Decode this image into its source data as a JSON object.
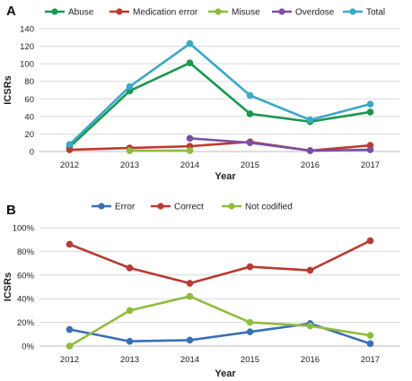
{
  "chart_data": [
    {
      "type": "line",
      "panel_label": "A",
      "xlabel": "Year",
      "ylabel": "ICSRs",
      "categories": [
        "2012",
        "2013",
        "2014",
        "2015",
        "2016",
        "2017"
      ],
      "ylim": [
        0,
        140
      ],
      "yticks": [
        0,
        20,
        40,
        60,
        80,
        100,
        120,
        140
      ],
      "ytick_labels": [
        "0",
        "20",
        "40",
        "60",
        "80",
        "100",
        "120",
        "140"
      ],
      "grid": true,
      "legend_position": "top",
      "series": [
        {
          "name": "Abuse",
          "color": "#1a9850",
          "values": [
            5,
            69,
            101,
            43,
            34,
            45
          ]
        },
        {
          "name": "Medication error",
          "color": "#c0392b",
          "values": [
            2,
            4,
            6,
            11,
            1,
            7
          ]
        },
        {
          "name": "Misuse",
          "color": "#8fbc3f",
          "values": [
            null,
            1,
            1,
            null,
            null,
            null
          ]
        },
        {
          "name": "Overdose",
          "color": "#7b4fa0",
          "values": [
            null,
            null,
            15,
            10,
            1,
            2
          ]
        },
        {
          "name": "Total",
          "color": "#3ca8c8",
          "values": [
            8,
            74,
            123,
            64,
            36,
            54
          ]
        }
      ]
    },
    {
      "type": "line",
      "panel_label": "B",
      "xlabel": "Year",
      "ylabel": "ICSRs",
      "categories": [
        "2012",
        "2013",
        "2014",
        "2015",
        "2016",
        "2017"
      ],
      "ylim": [
        0,
        100
      ],
      "yticks": [
        0,
        20,
        40,
        60,
        80,
        100
      ],
      "ytick_labels": [
        "0%",
        "20%",
        "40%",
        "60%",
        "80%",
        "100%"
      ],
      "grid": true,
      "legend_position": "top",
      "series": [
        {
          "name": "Error",
          "color": "#3a6fb5",
          "values": [
            14,
            4,
            5,
            12,
            19,
            2
          ]
        },
        {
          "name": "Correct",
          "color": "#b83a30",
          "values": [
            86,
            66,
            53,
            67,
            64,
            89
          ]
        },
        {
          "name": "Not codified",
          "color": "#8fbc3f",
          "values": [
            0,
            30,
            42,
            20,
            17,
            9
          ]
        }
      ]
    }
  ]
}
